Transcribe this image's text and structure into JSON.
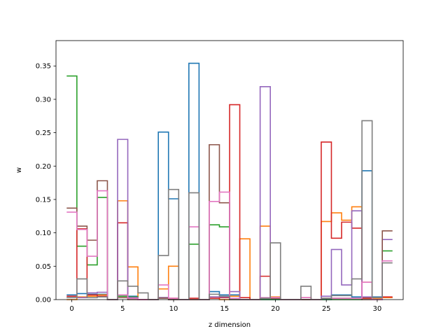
{
  "chart_data": {
    "type": "step",
    "xlabel": "z dimension",
    "ylabel": "w",
    "xlim": [
      -1.55,
      32.55
    ],
    "ylim": [
      0,
      0.388
    ],
    "x_ticks": [
      0,
      5,
      10,
      15,
      20,
      25,
      30
    ],
    "x_tick_labels": [
      "0",
      "5",
      "10",
      "15",
      "20",
      "25",
      "30"
    ],
    "y_ticks": [
      0,
      0.05,
      0.1,
      0.15,
      0.2,
      0.25,
      0.3,
      0.35
    ],
    "y_tick_labels": [
      "0.00",
      "0.05",
      "0.10",
      "0.15",
      "0.20",
      "0.25",
      "0.30",
      "0.35"
    ],
    "grid": false,
    "legend": "none",
    "x": [
      0,
      1,
      2,
      3,
      4,
      5,
      6,
      7,
      8,
      9,
      10,
      11,
      12,
      13,
      14,
      15,
      16,
      17,
      18,
      19,
      20,
      21,
      22,
      23,
      24,
      25,
      26,
      27,
      28,
      29,
      30,
      31
    ],
    "series": [
      {
        "color": "#1f77b4",
        "values": [
          0.007,
          0.009,
          0.008,
          0.008,
          0,
          0.005,
          0.005,
          0,
          0,
          0.251,
          0.151,
          0,
          0.354,
          0,
          0.012,
          0.007,
          0.007,
          0,
          0,
          0,
          0,
          0,
          0,
          0,
          0,
          0,
          0.007,
          0.007,
          0.004,
          0.193,
          0.004,
          0.003
        ]
      },
      {
        "color": "#ff7f0e",
        "values": [
          0,
          0.004,
          0.005,
          0.007,
          0,
          0.148,
          0.049,
          0,
          0,
          0.016,
          0.05,
          0,
          0,
          0,
          0.004,
          0,
          0.005,
          0.091,
          0,
          0.11,
          0.004,
          0,
          0,
          0,
          0,
          0.117,
          0.13,
          0.119,
          0.139,
          0.026,
          0.002,
          0.003
        ]
      },
      {
        "color": "#2ca02c",
        "values": [
          0.335,
          0.08,
          0.052,
          0.153,
          0,
          0.005,
          0.004,
          0,
          0,
          0.003,
          0,
          0,
          0.083,
          0,
          0.112,
          0.109,
          0,
          0,
          0,
          0,
          0,
          0,
          0,
          0,
          0,
          0,
          0,
          0,
          0,
          0.003,
          0.003,
          0.073
        ]
      },
      {
        "color": "#d62728",
        "values": [
          0.005,
          0.106,
          0.007,
          0.005,
          0,
          0.115,
          0.002,
          0,
          0,
          0.003,
          0.002,
          0,
          0.002,
          0,
          0.002,
          0.003,
          0.292,
          0.003,
          0,
          0.035,
          0.002,
          0,
          0,
          0.003,
          0,
          0.236,
          0.092,
          0.116,
          0.107,
          0.002,
          0.003,
          0.004
        ]
      },
      {
        "color": "#9467bd",
        "values": [
          0.003,
          0.003,
          0.01,
          0.011,
          0,
          0.24,
          0.003,
          0,
          0,
          0.003,
          0,
          0,
          0,
          0,
          0.004,
          0.004,
          0.012,
          0,
          0,
          0.319,
          0.003,
          0,
          0,
          0,
          0,
          0.005,
          0.075,
          0.022,
          0.133,
          0.004,
          0.003,
          0.09
        ]
      },
      {
        "color": "#8c564b",
        "values": [
          0.137,
          0.11,
          0.089,
          0.178,
          0,
          0.003,
          0,
          0,
          0,
          0.002,
          0,
          0,
          0,
          0,
          0.232,
          0.145,
          0,
          0,
          0,
          0.002,
          0.002,
          0,
          0,
          0,
          0,
          0.002,
          0.002,
          0.002,
          0.002,
          0,
          0,
          0.103
        ]
      },
      {
        "color": "#e377c2",
        "values": [
          0.131,
          0.105,
          0.065,
          0.163,
          0,
          0.007,
          0.002,
          0,
          0,
          0.022,
          0.002,
          0,
          0.109,
          0,
          0.147,
          0.161,
          0.002,
          0,
          0,
          0.003,
          0.003,
          0,
          0,
          0.003,
          0,
          0.002,
          0.002,
          0.002,
          0.002,
          0.026,
          0,
          0.058
        ]
      },
      {
        "color": "#7f7f7f",
        "values": [
          0.003,
          0.031,
          0.003,
          0.004,
          0,
          0.028,
          0.02,
          0.01,
          0,
          0.066,
          0.165,
          0,
          0.16,
          0,
          0.008,
          0.005,
          0,
          0,
          0,
          0.002,
          0.085,
          0,
          0,
          0.02,
          0,
          0.002,
          0.006,
          0.006,
          0.031,
          0.268,
          0.003,
          0.055
        ]
      }
    ]
  }
}
